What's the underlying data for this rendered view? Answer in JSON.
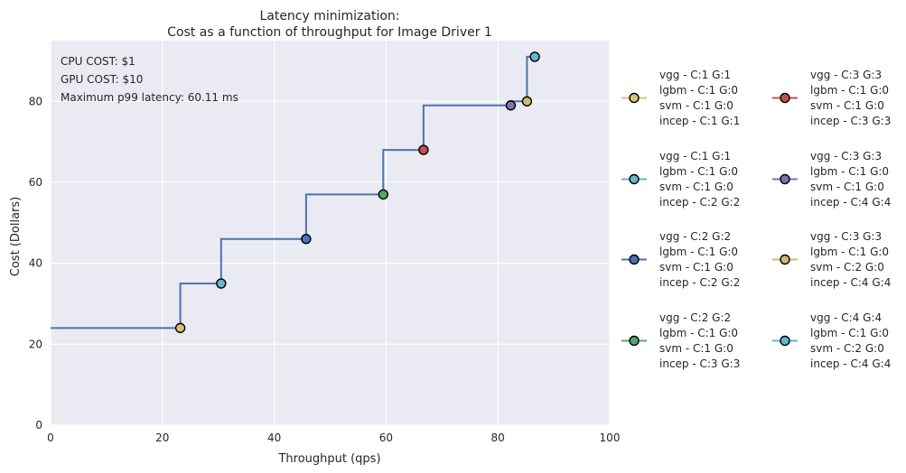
{
  "chart_data": {
    "type": "line",
    "title_lines": [
      "Latency minimization:",
      "Cost as a function of throughput for Image Driver 1"
    ],
    "xlabel": "Throughput (qps)",
    "ylabel": "Cost (Dollars)",
    "xlim": [
      0,
      100
    ],
    "ylim": [
      0,
      95
    ],
    "xticks": [
      0,
      20,
      40,
      60,
      80,
      100
    ],
    "yticks": [
      0,
      20,
      40,
      60,
      80
    ],
    "grid": true,
    "background": "#eaeaf2",
    "step_line_color": "#4c72b0",
    "step_path": [
      [
        0,
        24
      ],
      [
        23.2,
        24
      ],
      [
        23.2,
        35
      ],
      [
        30.5,
        35
      ],
      [
        30.5,
        46
      ],
      [
        45.7,
        46
      ],
      [
        45.7,
        57
      ],
      [
        59.5,
        57
      ],
      [
        59.5,
        68
      ],
      [
        66.7,
        68
      ],
      [
        66.7,
        79
      ],
      [
        82.3,
        79
      ],
      [
        82.3,
        80
      ],
      [
        85.2,
        80
      ],
      [
        85.2,
        91
      ],
      [
        86.6,
        91
      ]
    ],
    "annotations": [
      "CPU COST: $1",
      "GPU COST: $10",
      "Maximum p99 latency: 60.11 ms"
    ],
    "legend_position": "right",
    "series": [
      {
        "x": 23.2,
        "y": 24,
        "color": "#ddc07a",
        "label": [
          "vgg - C:1 G:1",
          "lgbm - C:1 G:0",
          "svm - C:1 G:0",
          "incep - C:1 G:1"
        ]
      },
      {
        "x": 30.5,
        "y": 35,
        "color": "#64b5cd",
        "label": [
          "vgg - C:1 G:1",
          "lgbm - C:1 G:0",
          "svm - C:1 G:0",
          "incep - C:2 G:2"
        ]
      },
      {
        "x": 45.7,
        "y": 46,
        "color": "#4c72b0",
        "label": [
          "vgg - C:2 G:2",
          "lgbm - C:1 G:0",
          "svm - C:1 G:0",
          "incep - C:2 G:2"
        ]
      },
      {
        "x": 59.5,
        "y": 57,
        "color": "#55a868",
        "label": [
          "vgg - C:2 G:2",
          "lgbm - C:1 G:0",
          "svm - C:1 G:0",
          "incep - C:3 G:3"
        ]
      },
      {
        "x": 66.7,
        "y": 68,
        "color": "#c44e52",
        "label": [
          "vgg - C:3 G:3",
          "lgbm - C:1 G:0",
          "svm - C:1 G:0",
          "incep - C:3 G:3"
        ]
      },
      {
        "x": 82.3,
        "y": 79,
        "color": "#8172b2",
        "label": [
          "vgg - C:3 G:3",
          "lgbm - C:1 G:0",
          "svm - C:1 G:0",
          "incep - C:4 G:4"
        ]
      },
      {
        "x": 85.2,
        "y": 80,
        "color": "#ccb974",
        "label": [
          "vgg - C:3 G:3",
          "lgbm - C:1 G:0",
          "svm - C:2 G:0",
          "incep - C:4 G:4"
        ]
      },
      {
        "x": 86.6,
        "y": 91,
        "color": "#64b5cd",
        "label": [
          "vgg - C:4 G:4",
          "lgbm - C:1 G:0",
          "svm - C:2 G:0",
          "incep - C:4 G:4"
        ]
      }
    ]
  }
}
